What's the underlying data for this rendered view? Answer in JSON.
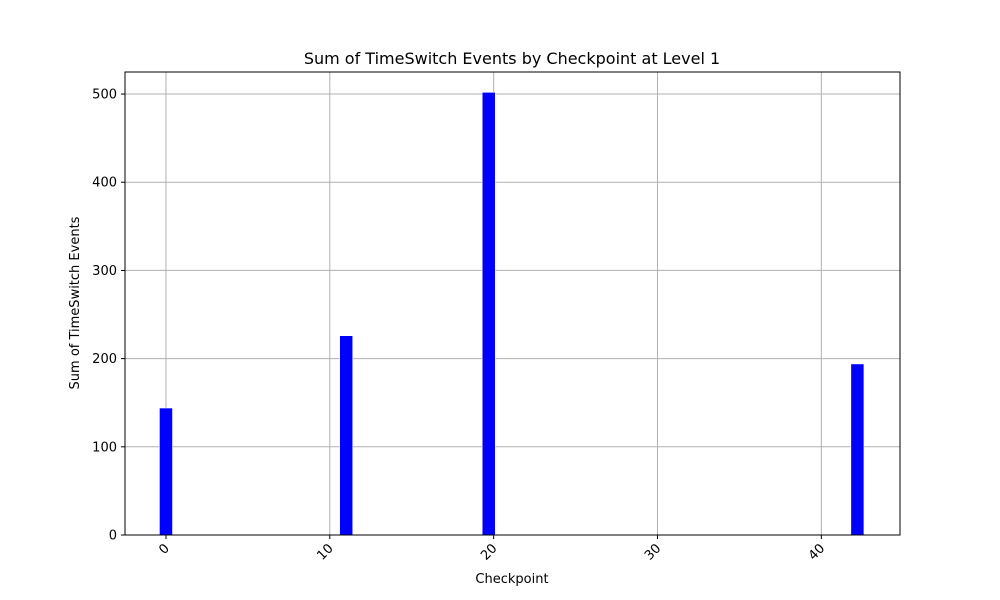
{
  "chart_data": {
    "type": "bar",
    "title": "Sum of TimeSwitch Events by Checkpoint at Level 1",
    "xlabel": "Checkpoint",
    "ylabel": "Sum of TimeSwitch Events",
    "x": [
      0,
      11,
      19.7,
      42.2
    ],
    "values": [
      144,
      226,
      502,
      194
    ],
    "bar_width": 0.8,
    "xlim": [
      -2.5,
      44.8
    ],
    "ylim": [
      0,
      525
    ],
    "xticks": [
      0,
      10,
      20,
      30,
      40
    ],
    "yticks": [
      0,
      100,
      200,
      300,
      400,
      500
    ],
    "xtick_rotation": 45,
    "grid": true,
    "colors": {
      "bar": "#0000ff",
      "bar_edge": "#ffffff",
      "grid": "#b0b0b0",
      "axes": "#000000"
    }
  }
}
